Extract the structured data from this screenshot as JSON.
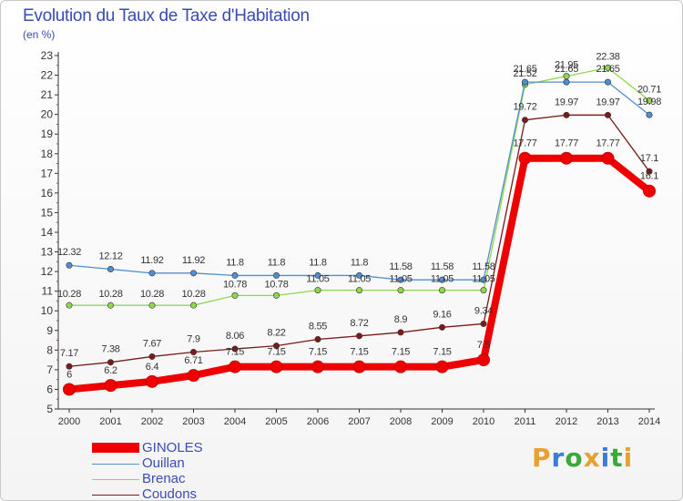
{
  "header": {
    "title": "Evolution du Taux de Taxe d'Habitation",
    "unit": "(en %)"
  },
  "brand": {
    "letters": [
      "P",
      "r",
      "o",
      "x",
      "i",
      "t",
      "i"
    ],
    "colors": [
      "#e8a030",
      "#3a7dd6",
      "#3aa83a",
      "#e8a030",
      "#3a7dd6",
      "#3aa83a",
      "#e8a030"
    ]
  },
  "chart_data": {
    "type": "line",
    "x": [
      "2000",
      "2001",
      "2002",
      "2003",
      "2004",
      "2005",
      "2006",
      "2007",
      "2008",
      "2009",
      "2010",
      "2011",
      "2012",
      "2013",
      "2014"
    ],
    "ylim": [
      5,
      23
    ],
    "yticks": [
      5,
      6,
      7,
      8,
      9,
      10,
      11,
      12,
      13,
      14,
      15,
      16,
      17,
      18,
      19,
      20,
      21,
      22,
      23
    ],
    "grid": false,
    "legend_position": "bottom-left",
    "series": [
      {
        "name": "Coudons",
        "color": "#7a1a1a",
        "values": [
          7.17,
          7.38,
          7.67,
          7.9,
          8.06,
          8.22,
          8.55,
          8.72,
          8.9,
          9.16,
          9.34,
          19.72,
          19.97,
          19.97,
          17.1
        ],
        "labels": [
          "7.17",
          "7.38",
          "7.67",
          "7.9",
          "8.06",
          "8.22",
          "8.55",
          "8.72",
          "8.9",
          "9.16",
          "9.34",
          "19.72",
          "19.97",
          "19.97",
          "17.1"
        ]
      },
      {
        "name": "Brenac",
        "color": "#8ed84e",
        "values": [
          10.28,
          10.28,
          10.28,
          10.28,
          10.78,
          10.78,
          11.05,
          11.05,
          11.05,
          11.05,
          11.05,
          21.52,
          21.95,
          22.38,
          20.71
        ],
        "labels": [
          "10.28",
          "10.28",
          "10.28",
          "10.28",
          "10.78",
          "10.78",
          "11.05",
          "11.05",
          "11.05",
          "11.05",
          "11.05",
          "21.52",
          "21.95",
          "22.38",
          "20.71"
        ]
      },
      {
        "name": "Ouillan",
        "color": "#4f8fd0",
        "values": [
          12.32,
          12.12,
          11.92,
          11.92,
          11.8,
          11.8,
          11.8,
          11.8,
          11.58,
          11.58,
          11.58,
          21.65,
          21.65,
          21.65,
          19.98
        ],
        "labels": [
          "12.32",
          "12.12",
          "11.92",
          "11.92",
          "11.8",
          "11.8",
          "11.8",
          "11.8",
          "11.58",
          "11.58",
          "11.58",
          "21.65",
          "21.65",
          "21.65",
          "19.98"
        ]
      },
      {
        "name": "GINOLES",
        "color": "#ee0000",
        "values": [
          6,
          6.2,
          6.4,
          6.71,
          7.15,
          7.15,
          7.15,
          7.15,
          7.15,
          7.15,
          7.5,
          17.77,
          17.77,
          17.77,
          16.1
        ],
        "labels": [
          "6",
          "6.2",
          "6.4",
          "6.71",
          "7.15",
          "7.15",
          "7.15",
          "7.15",
          "7.15",
          "7.15",
          "7.5",
          "17.77",
          "17.77",
          "17.77",
          "16.1"
        ]
      }
    ],
    "legend": [
      "GINOLES",
      "Ouillan",
      "Brenac",
      "Coudons"
    ]
  }
}
